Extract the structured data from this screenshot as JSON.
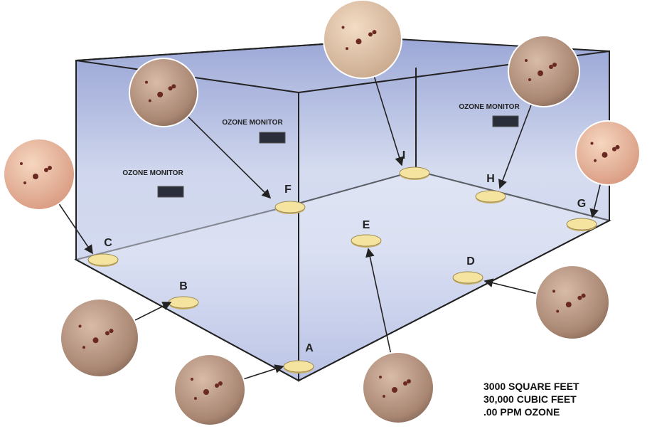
{
  "plates": [
    "A",
    "B",
    "C",
    "D",
    "E",
    "F",
    "G",
    "H",
    "I"
  ],
  "monitors": [
    "OZONE MONITOR",
    "OZONE MONITOR",
    "OZONE MONITOR"
  ],
  "info": [
    "3000 SQUARE FEET",
    "30,000 CUBIC FEET",
    ".00 PPM OZONE"
  ]
}
